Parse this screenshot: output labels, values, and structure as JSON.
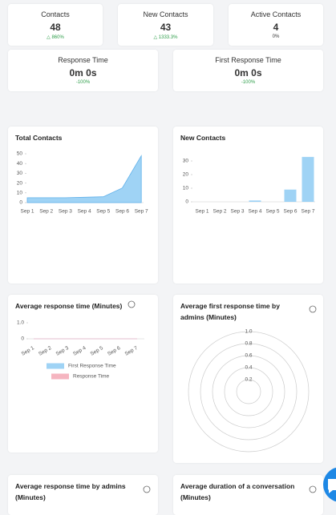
{
  "stats": [
    {
      "label": "Contacts",
      "value": 48,
      "change": "860%"
    },
    {
      "label": "New Contacts",
      "value": 43,
      "change": "1333.3%"
    },
    {
      "label": "Active Contacts",
      "value": 4,
      "change": "0%"
    }
  ],
  "response_cards": [
    {
      "label": "Response Time",
      "value": "0m 0s",
      "change": "-100%"
    },
    {
      "label": "First Response Time",
      "value": "0m 0s",
      "change": "-100%"
    }
  ],
  "charts": [
    {
      "type": "area",
      "title": "Total Contacts",
      "categories": [
        "Sep 1",
        "Sep 2",
        "Sep 3",
        "Sep 4",
        "Sep 5",
        "Sep 6",
        "Sep 7"
      ],
      "values": [
        5,
        5,
        5,
        5.5,
        6,
        15,
        48
      ],
      "color": "#9fd3f5",
      "ylim": [
        0,
        50
      ],
      "yticks": [
        0,
        10,
        20,
        30,
        40,
        50
      ]
    },
    {
      "type": "bar",
      "title": "New Contacts",
      "categories": [
        "Sep 1",
        "Sep 2",
        "Sep 3",
        "Sep 4",
        "Sep 5",
        "Sep 6",
        "Sep 7"
      ],
      "values": [
        0,
        0,
        0,
        1,
        0,
        9,
        33
      ],
      "color": "#9fd3f5",
      "ylim": [
        0,
        35
      ],
      "yticks": [
        0,
        10,
        20,
        30
      ]
    },
    {
      "type": "line",
      "title": "Average response time (Minutes)",
      "categories": [
        "Sep 1",
        "Sep 2",
        "Sep 3",
        "Sep 4",
        "Sep 5",
        "Sep 6",
        "Sep 7"
      ],
      "series": [
        {
          "name": "First Response Time",
          "color": "#9fd3f5",
          "values": [
            0,
            0,
            0,
            0,
            0,
            0,
            0
          ]
        },
        {
          "name": "Response Time",
          "color": "#f5b5c0",
          "values": [
            0,
            0,
            0,
            0,
            0,
            0,
            0
          ]
        }
      ],
      "ylim": [
        0,
        1
      ],
      "yticks": [
        0,
        {
          "value": 1,
          "label": "1.0"
        }
      ]
    },
    {
      "type": "radar",
      "title": "Average first response time by admins (Minutes)",
      "rlim": [
        0,
        1
      ],
      "rticks": [
        0.2,
        0.4,
        0.6,
        0.8,
        {
          "value": 1,
          "label": "1.0"
        }
      ]
    }
  ],
  "bottom_cards": [
    {
      "title": "Average response time by admins (Minutes)"
    },
    {
      "title": "Average duration of a conversation (Minutes)"
    }
  ]
}
